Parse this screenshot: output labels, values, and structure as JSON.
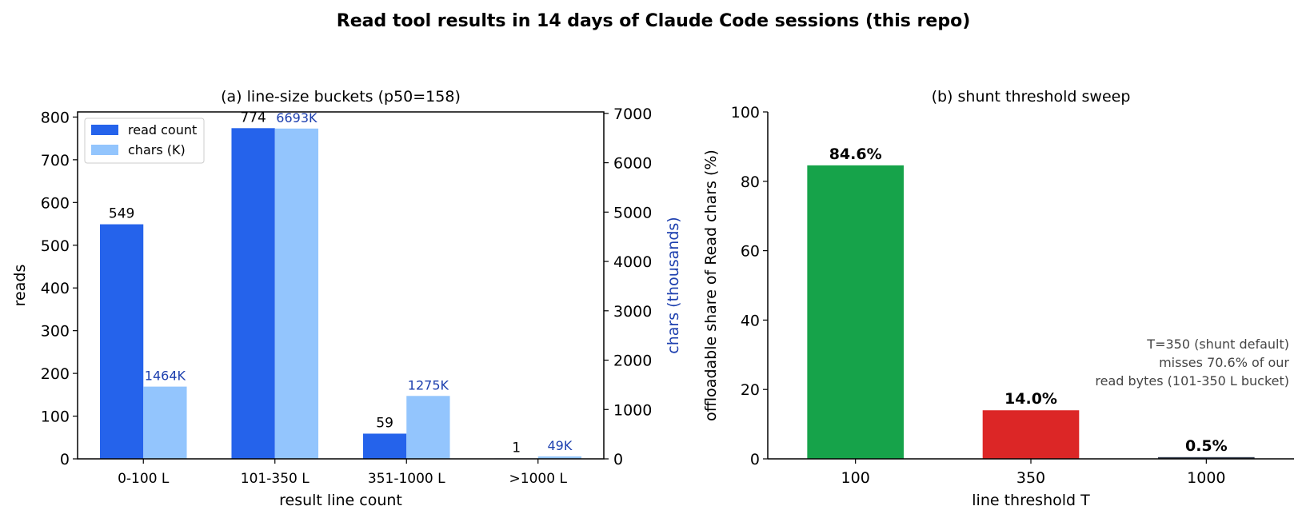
{
  "figure": {
    "title": "Read tool results in 14 days of Claude Code sessions (this repo)"
  },
  "colors": {
    "reads_bar": "#2563EB",
    "chars_bar": "#93C5FD",
    "chars_axis": "#1E40AF",
    "bar_100": "#16A34A",
    "bar_350": "#DC2626",
    "bar_1000": "#374151",
    "annotation": "#444444"
  },
  "chart_data": [
    {
      "type": "bar",
      "title": "(a) line-size buckets (p50=158)",
      "xlabel": "result line count",
      "ylabel": "reads",
      "y2label": "chars (thousands)",
      "categories": [
        "0-100 L",
        "101-350 L",
        "351-1000 L",
        ">1000 L"
      ],
      "ylim": [
        0,
        812
      ],
      "y2lim": [
        0,
        7030
      ],
      "yticks": [
        0,
        100,
        200,
        300,
        400,
        500,
        600,
        700,
        800
      ],
      "y2ticks": [
        0,
        1000,
        2000,
        3000,
        4000,
        5000,
        6000,
        7000
      ],
      "legend_position": "top-left",
      "series": [
        {
          "name": "read count",
          "axis": "left",
          "values": [
            549,
            774,
            59,
            1
          ],
          "labels": [
            "549",
            "774",
            "59",
            "1"
          ]
        },
        {
          "name": "chars (K)",
          "axis": "right",
          "values": [
            1464,
            6693,
            1275,
            49
          ],
          "labels": [
            "1464K",
            "6693K",
            "1275K",
            "49K"
          ]
        }
      ]
    },
    {
      "type": "bar",
      "title": "(b) shunt threshold sweep",
      "xlabel": "line threshold T",
      "ylabel": "offloadable share of Read chars (%)",
      "categories": [
        "100",
        "350",
        "1000"
      ],
      "values": [
        84.6,
        14.0,
        0.5
      ],
      "labels": [
        "84.6%",
        "14.0%",
        "0.5%"
      ],
      "ylim": [
        0,
        100
      ],
      "yticks": [
        0,
        20,
        40,
        60,
        80,
        100
      ],
      "annotation": [
        "T=350 (shunt default)",
        "misses 70.6% of our",
        "read bytes (101-350 L bucket)"
      ]
    }
  ]
}
